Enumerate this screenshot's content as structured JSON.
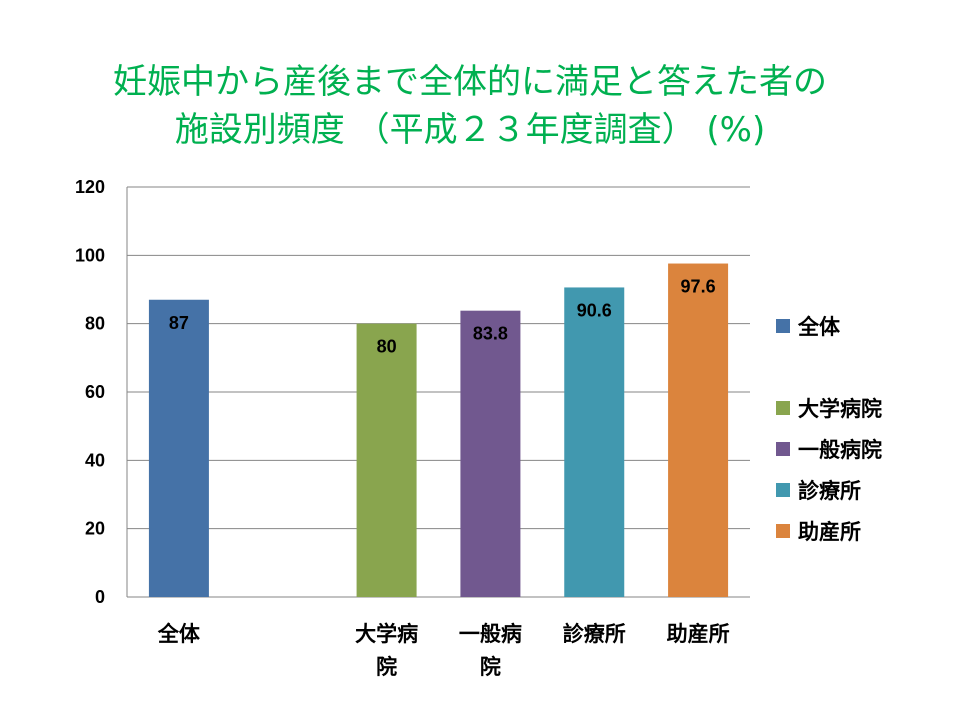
{
  "title": {
    "line1": "妊娠中から産後まで全体的に満足と答えた者の",
    "line2": "施設別頻度 （平成２３年度調査） (%)"
  },
  "chart_data": {
    "type": "bar",
    "categories": [
      "全体",
      "",
      "大学病院",
      "一般病院",
      "診療所",
      "助産所"
    ],
    "category_labels": [
      [
        "全体"
      ],
      [],
      [
        "大学病",
        "院"
      ],
      [
        "一般病",
        "院"
      ],
      [
        "診療所"
      ],
      [
        "助産所"
      ]
    ],
    "values": [
      87,
      null,
      80,
      83.8,
      90.6,
      97.6
    ],
    "value_labels": [
      "87",
      "",
      "80",
      "83.8",
      "90.6",
      "97.6"
    ],
    "colors": [
      "#4572a7",
      null,
      "#89a54e",
      "#71588f",
      "#4198af",
      "#db843d"
    ],
    "ylim": [
      0,
      120
    ],
    "yticks": [
      0,
      20,
      40,
      60,
      80,
      100,
      120
    ],
    "grid": true,
    "legend_position": "right",
    "legend": [
      {
        "name": "全体",
        "color": "#4572a7"
      },
      {
        "name": "",
        "color": null
      },
      {
        "name": "大学病院",
        "color": "#89a54e"
      },
      {
        "name": "一般病院",
        "color": "#71588f"
      },
      {
        "name": "診療所",
        "color": "#4198af"
      },
      {
        "name": "助産所",
        "color": "#db843d"
      }
    ],
    "xlabel": "",
    "ylabel": ""
  }
}
